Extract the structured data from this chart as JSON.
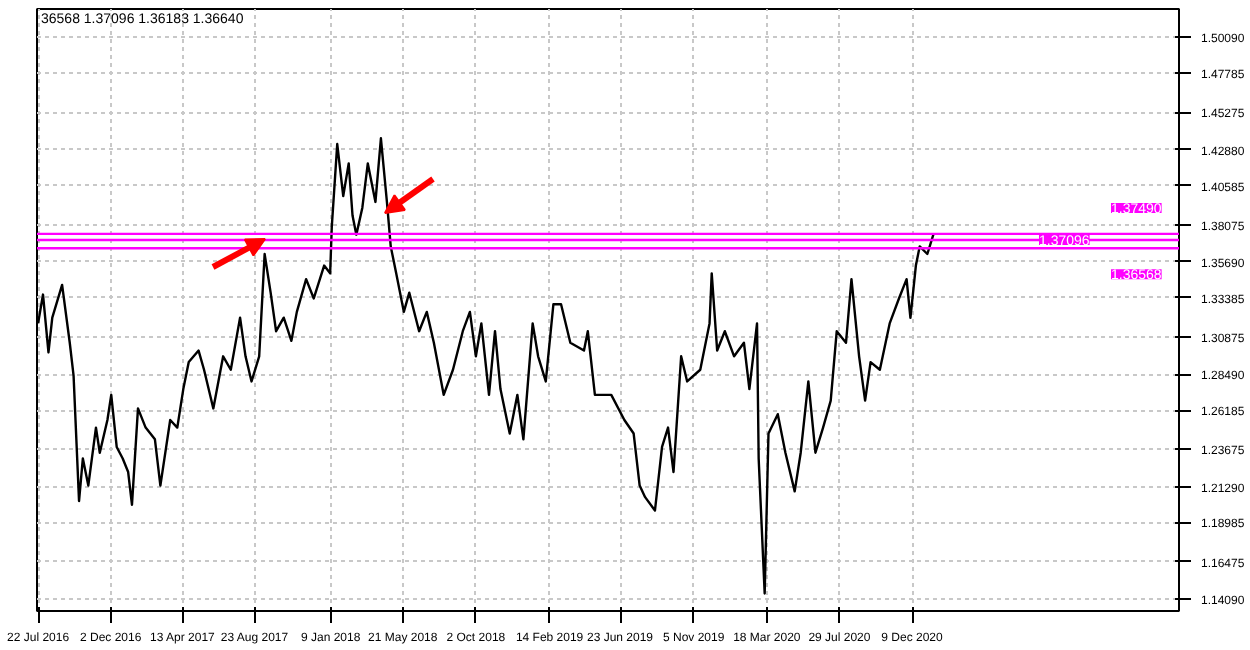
{
  "chart_data": {
    "type": "line",
    "annotations": [
      "36568 1.37096 1.36183 1.36640"
    ],
    "xlim": [
      "2016-07-20",
      "2022-04-12"
    ],
    "ylim": [
      1.1331,
      1.5191
    ],
    "xticks": [
      {
        "value": "2016-07-22",
        "label": "22 Jul 2016"
      },
      {
        "value": "2016-12-02",
        "label": "2 Dec 2016"
      },
      {
        "value": "2017-04-13",
        "label": "13 Apr 2017"
      },
      {
        "value": "2017-08-23",
        "label": "23 Aug 2017"
      },
      {
        "value": "2018-01-09",
        "label": "9 Jan 2018"
      },
      {
        "value": "2018-05-21",
        "label": "21 May 2018"
      },
      {
        "value": "2018-10-02",
        "label": "2 Oct 2018"
      },
      {
        "value": "2019-02-14",
        "label": "14 Feb 2019"
      },
      {
        "value": "2019-06-23",
        "label": "23 Jun 2019"
      },
      {
        "value": "2019-11-05",
        "label": "5 Nov 2019"
      },
      {
        "value": "2020-03-18",
        "label": "18 Mar 2020"
      },
      {
        "value": "2020-07-29",
        "label": "29 Jul 2020"
      },
      {
        "value": "2020-12-09",
        "label": "9 Dec 2020"
      }
    ],
    "yticks": [
      {
        "value": 1.5009,
        "label": "1.50090"
      },
      {
        "value": 1.47785,
        "label": "1.47785"
      },
      {
        "value": 1.45275,
        "label": "1.45275"
      },
      {
        "value": 1.4288,
        "label": "1.42880"
      },
      {
        "value": 1.40585,
        "label": "1.40585"
      },
      {
        "value": 1.38075,
        "label": "1.38075"
      },
      {
        "value": 1.3569,
        "label": "1.35690"
      },
      {
        "value": 1.33385,
        "label": "1.33385"
      },
      {
        "value": 1.30875,
        "label": "1.30875"
      },
      {
        "value": 1.2849,
        "label": "1.28490"
      },
      {
        "value": 1.26185,
        "label": "1.26185"
      },
      {
        "value": 1.23675,
        "label": "1.23675"
      },
      {
        "value": 1.2129,
        "label": "1.21290"
      },
      {
        "value": 1.18985,
        "label": "1.18985"
      },
      {
        "value": 1.16475,
        "label": "1.16475"
      },
      {
        "value": 1.1409,
        "label": "1.14090"
      }
    ],
    "grid": true,
    "ref_lines": [
      {
        "axis": "y",
        "value": 1.3749,
        "label": "1.37490",
        "color": "#ff00ff"
      },
      {
        "axis": "y",
        "value": 1.37096,
        "label": "1.37096",
        "color": "#ff00ff"
      },
      {
        "axis": "y",
        "value": 1.36568,
        "label": "1.36568",
        "color": "#ff00ff"
      }
    ],
    "series": [
      {
        "color": "#000000",
        "x": [
          "2016-07-22",
          "2016-07-31",
          "2016-08-10",
          "2016-08-17",
          "2016-09-04",
          "2016-09-18",
          "2016-09-25",
          "2016-10-05",
          "2016-10-12",
          "2016-10-22",
          "2016-11-05",
          "2016-11-12",
          "2016-11-26",
          "2016-12-03",
          "2016-12-13",
          "2016-12-24",
          "2017-01-03",
          "2017-01-10",
          "2017-01-21",
          "2017-02-04",
          "2017-02-21",
          "2017-03-03",
          "2017-03-21",
          "2017-04-03",
          "2017-04-14",
          "2017-04-24",
          "2017-05-12",
          "2017-05-22",
          "2017-06-08",
          "2017-06-26",
          "2017-07-10",
          "2017-07-27",
          "2017-08-06",
          "2017-08-17",
          "2017-08-31",
          "2017-09-10",
          "2017-09-21",
          "2017-10-01",
          "2017-10-15",
          "2017-10-29",
          "2017-11-08",
          "2017-11-25",
          "2017-12-09",
          "2017-12-28",
          "2018-01-08",
          "2018-01-11",
          "2018-01-21",
          "2018-02-01",
          "2018-02-11",
          "2018-02-18",
          "2018-02-25",
          "2018-03-08",
          "2018-03-18",
          "2018-04-01",
          "2018-04-11",
          "2018-04-22",
          "2018-04-29",
          "2018-05-09",
          "2018-05-23",
          "2018-06-02",
          "2018-06-20",
          "2018-07-04",
          "2018-07-17",
          "2018-08-04",
          "2018-08-21",
          "2018-09-08",
          "2018-09-21",
          "2018-10-02",
          "2018-10-12",
          "2018-10-26",
          "2018-11-06",
          "2018-11-16",
          "2018-12-03",
          "2018-12-17",
          "2018-12-28",
          "2019-01-14",
          "2019-01-24",
          "2019-02-07",
          "2019-02-21",
          "2019-03-07",
          "2019-03-24",
          "2019-04-18",
          "2019-04-25",
          "2019-05-08",
          "2019-06-07",
          "2019-07-01",
          "2019-07-18",
          "2019-07-29",
          "2019-08-08",
          "2019-08-26",
          "2019-09-08",
          "2019-09-19",
          "2019-09-29",
          "2019-10-13",
          "2019-10-24",
          "2019-11-17",
          "2019-12-04",
          "2019-12-08",
          "2019-12-18",
          "2020-01-01",
          "2020-01-18",
          "2020-02-05",
          "2020-02-15",
          "2020-02-29",
          "2020-03-03",
          "2020-03-14",
          "2020-03-21",
          "2020-04-07",
          "2020-04-21",
          "2020-05-08",
          "2020-05-19",
          "2020-06-02",
          "2020-06-15",
          "2020-06-29",
          "2020-07-13",
          "2020-07-24",
          "2020-08-10",
          "2020-08-20",
          "2020-09-03",
          "2020-09-14",
          "2020-09-24",
          "2020-10-11",
          "2020-10-29",
          "2020-11-15",
          "2020-11-29",
          "2020-12-06",
          "2020-12-16",
          "2020-12-23",
          "2021-01-06",
          "2021-01-17"
        ],
        "values": [
          1.3175,
          1.336,
          1.2989,
          1.3212,
          1.3422,
          1.3051,
          1.284,
          1.2036,
          1.2309,
          1.2135,
          1.2507,
          1.2346,
          1.2556,
          1.2717,
          1.2383,
          1.2309,
          1.2222,
          1.2012,
          1.263,
          1.2507,
          1.2432,
          1.2135,
          1.2556,
          1.2507,
          1.2754,
          1.2927,
          1.3001,
          1.2878,
          1.263,
          1.2964,
          1.2878,
          1.3212,
          1.2964,
          1.2803,
          1.2964,
          1.362,
          1.3372,
          1.3125,
          1.3212,
          1.3063,
          1.3249,
          1.3459,
          1.3335,
          1.3546,
          1.3496,
          1.3793,
          1.4325,
          1.3991,
          1.4201,
          1.3867,
          1.3744,
          1.3917,
          1.4201,
          1.3954,
          1.4362,
          1.3954,
          1.3669,
          1.3496,
          1.3249,
          1.3372,
          1.3125,
          1.3249,
          1.3051,
          1.2717,
          1.2878,
          1.3125,
          1.3249,
          1.2964,
          1.3175,
          1.2717,
          1.3125,
          1.2754,
          1.2469,
          1.2717,
          1.2432,
          1.3175,
          1.2964,
          1.2803,
          1.3298,
          1.3298,
          1.3051,
          1.3001,
          1.3125,
          1.2717,
          1.2717,
          1.2556,
          1.2469,
          1.2135,
          1.2061,
          1.1975,
          1.2383,
          1.2507,
          1.2222,
          1.2964,
          1.2803,
          1.2878,
          1.3175,
          1.3496,
          1.3001,
          1.3125,
          1.2964,
          1.3051,
          1.2754,
          1.3175,
          1.2309,
          1.1443,
          1.2469,
          1.2593,
          1.2346,
          1.2098,
          1.2346,
          1.2803,
          1.2346,
          1.2507,
          1.268,
          1.3125,
          1.3051,
          1.3459,
          1.2964,
          1.268,
          1.2927,
          1.2878,
          1.3175,
          1.3335,
          1.3459,
          1.3211,
          1.3546,
          1.3669,
          1.362,
          1.3744
        ]
      }
    ]
  }
}
